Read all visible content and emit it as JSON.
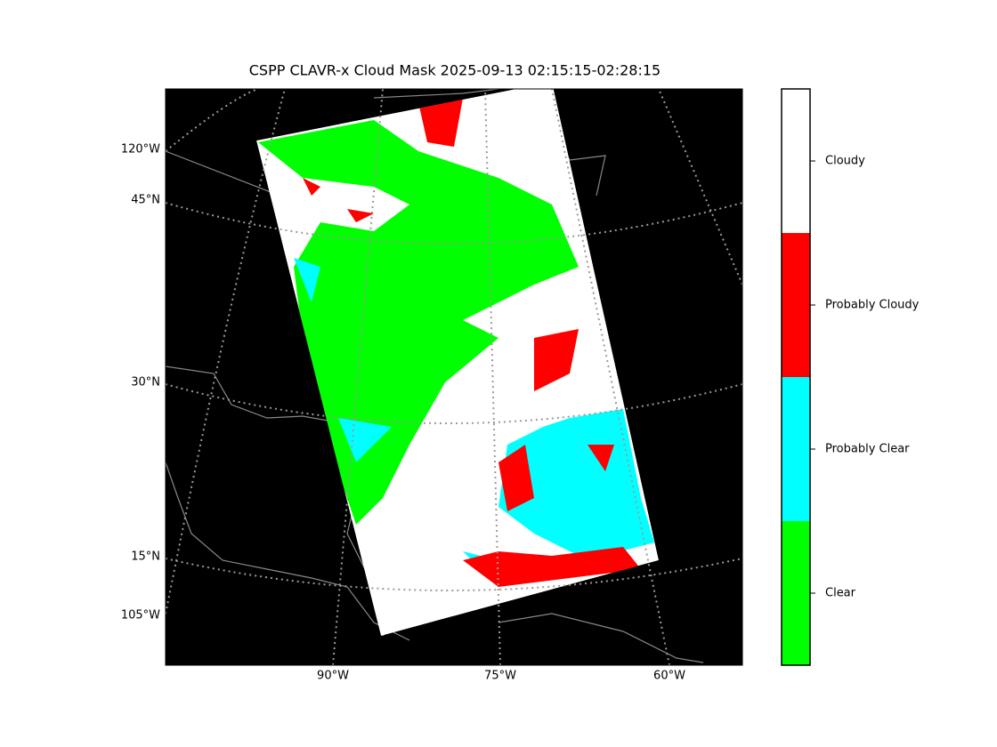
{
  "title": "CSPP CLAVR-x Cloud Mask 2025-09-13 02:15:15-02:28:15",
  "map": {
    "background": "#000000",
    "lon_labels": [
      "90°W",
      "75°W",
      "60°W"
    ],
    "lat_labels": [
      "120°W",
      "45°N",
      "30°N",
      "15°N",
      "105°W"
    ]
  },
  "colorbar": {
    "classes": [
      {
        "name": "Clear",
        "color": "#00ff00"
      },
      {
        "name": "Probably Clear",
        "color": "#00ffff"
      },
      {
        "name": "Probably Cloudy",
        "color": "#ff0000"
      },
      {
        "name": "Cloudy",
        "color": "#ffffff"
      }
    ]
  }
}
